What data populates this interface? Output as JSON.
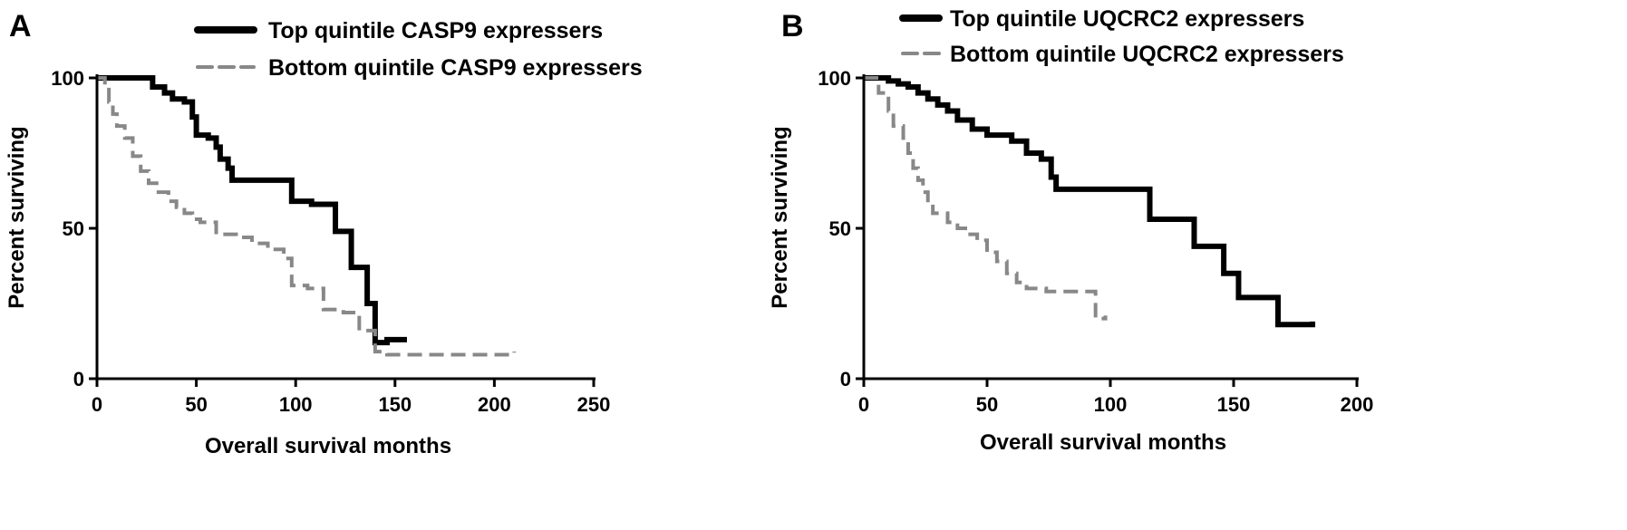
{
  "panels": [
    {
      "letter": "A",
      "chart_data": {
        "type": "line",
        "step": true,
        "xlabel": "Overall survival months",
        "ylabel": "Percent  surviving",
        "xlim": [
          0,
          250
        ],
        "ylim": [
          0,
          100
        ],
        "xticks": [
          0,
          50,
          100,
          150,
          200,
          250
        ],
        "yticks": [
          0,
          50,
          100
        ],
        "legend_position": "top",
        "series": [
          {
            "name": "Top quintile CASP9 expressers",
            "color": "#000000",
            "dash": "solid",
            "x": [
              0,
              24,
              28,
              34,
              38,
              44,
              48,
              50,
              56,
              60,
              62,
              66,
              68,
              76,
              84,
              96,
              98,
              108,
              114,
              120,
              128,
              136,
              140,
              146,
              156
            ],
            "y": [
              100,
              100,
              97,
              95,
              93,
              92,
              87,
              81,
              80,
              77,
              73,
              70,
              66,
              66,
              66,
              66,
              59,
              58,
              58,
              49,
              37,
              25,
              12,
              13,
              13
            ]
          },
          {
            "name": "Bottom quintile CASP9 expressers",
            "color": "#888888",
            "dash": "dashed",
            "x": [
              0,
              4,
              6,
              8,
              10,
              14,
              18,
              22,
              26,
              30,
              36,
              40,
              44,
              48,
              52,
              56,
              60,
              70,
              78,
              86,
              94,
              98,
              106,
              114,
              124,
              132,
              140,
              146,
              170,
              190,
              210
            ],
            "y": [
              100,
              97,
              92,
              88,
              84,
              80,
              74,
              69,
              65,
              62,
              59,
              57,
              55,
              53,
              52,
              52,
              48,
              47,
              45,
              43,
              40,
              31,
              30,
              23,
              22,
              16,
              9,
              8,
              8,
              8,
              9
            ]
          }
        ]
      }
    },
    {
      "letter": "B",
      "chart_data": {
        "type": "line",
        "step": true,
        "xlabel": "Overall survival months",
        "ylabel": "Percent  surviving",
        "xlim": [
          0,
          200
        ],
        "ylim": [
          0,
          100
        ],
        "xticks": [
          0,
          50,
          100,
          150,
          200
        ],
        "yticks": [
          0,
          50,
          100
        ],
        "legend_position": "top",
        "series": [
          {
            "name": "Top quintile UQCRC2 expressers",
            "color": "#000000",
            "dash": "solid",
            "x": [
              0,
              6,
              10,
              14,
              18,
              22,
              26,
              30,
              34,
              38,
              44,
              50,
              60,
              66,
              72,
              76,
              78,
              90,
              100,
              116,
              124,
              134,
              140,
              146,
              152,
              160,
              168,
              176,
              182
            ],
            "y": [
              100,
              100,
              99,
              98,
              97,
              95,
              93,
              91,
              89,
              86,
              83,
              81,
              79,
              75,
              73,
              67,
              63,
              63,
              63,
              53,
              53,
              44,
              44,
              35,
              27,
              27,
              18,
              18,
              19
            ]
          },
          {
            "name": "Bottom quintile UQCRC2 expressers",
            "color": "#888888",
            "dash": "dashed",
            "x": [
              0,
              6,
              10,
              12,
              16,
              18,
              20,
              22,
              24,
              26,
              28,
              30,
              34,
              38,
              42,
              46,
              50,
              54,
              58,
              62,
              66,
              74,
              86,
              94,
              98
            ],
            "y": [
              100,
              95,
              89,
              84,
              80,
              75,
              70,
              66,
              62,
              58,
              55,
              55,
              52,
              50,
              48,
              46,
              42,
              39,
              35,
              32,
              30,
              29,
              29,
              20,
              21
            ]
          }
        ]
      }
    }
  ]
}
